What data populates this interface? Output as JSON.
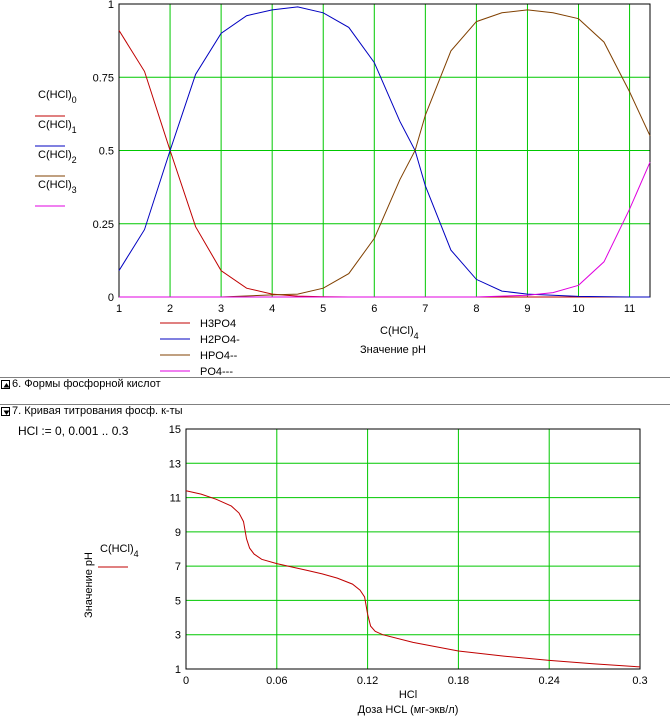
{
  "chart1": {
    "type": "line",
    "xlim": [
      1,
      11.4
    ],
    "ylim": [
      0,
      1
    ],
    "xticks": [
      "1",
      "2",
      "3",
      "4",
      "5",
      "6",
      "7",
      "8",
      "9",
      "10",
      "11"
    ],
    "yticks": [
      "0",
      "0.25",
      "0.5",
      "0.75",
      "1"
    ],
    "grid": true,
    "grid_color": "#00c800",
    "ylabel_entries": [
      {
        "label": "C(HCl)",
        "sub": "0",
        "color": "#c00000"
      },
      {
        "label": "C(HCl)",
        "sub": "1",
        "color": "#0000c0"
      },
      {
        "label": "C(HCl)",
        "sub": "2",
        "color": "#804000"
      },
      {
        "label": "C(HCl)",
        "sub": "3",
        "color": "#e000e0"
      }
    ],
    "xlabel_var": {
      "label": "C(HCl)",
      "sub": "4"
    },
    "xlabel": "Значение рН",
    "legend": [
      {
        "name": "H3PO4",
        "color": "#c00000"
      },
      {
        "name": "H2PO4-",
        "color": "#0000c0"
      },
      {
        "name": "HPO4--",
        "color": "#804000"
      },
      {
        "name": "PO4---",
        "color": "#e000e0"
      }
    ]
  },
  "chart_data": [
    {
      "type": "line",
      "xlim": [
        1,
        11.4
      ],
      "ylim": [
        0,
        1
      ],
      "xlabel": "Значение рН",
      "series": [
        {
          "name": "H3PO4",
          "color": "#c00000",
          "x": [
            1,
            1.5,
            2,
            2.5,
            3,
            3.5,
            4,
            4.5,
            5,
            5.5,
            6,
            7,
            8,
            9,
            10,
            11,
            11.4
          ],
          "y": [
            0.91,
            0.77,
            0.5,
            0.24,
            0.09,
            0.03,
            0.01,
            0.003,
            0.001,
            0,
            0,
            0,
            0,
            0,
            0,
            0,
            0
          ]
        },
        {
          "name": "H2PO4-",
          "color": "#0000c0",
          "x": [
            1,
            1.5,
            2,
            2.5,
            3,
            3.5,
            4,
            4.5,
            5,
            5.5,
            6,
            6.5,
            6.8,
            7,
            7.5,
            8,
            8.5,
            9,
            10,
            11,
            11.4
          ],
          "y": [
            0.09,
            0.23,
            0.5,
            0.76,
            0.9,
            0.96,
            0.98,
            0.99,
            0.97,
            0.92,
            0.8,
            0.6,
            0.5,
            0.38,
            0.16,
            0.06,
            0.02,
            0.01,
            0.002,
            0,
            0
          ]
        },
        {
          "name": "HPO4--",
          "color": "#804000",
          "x": [
            1,
            3,
            4,
            4.5,
            5,
            5.5,
            6,
            6.5,
            6.8,
            7,
            7.5,
            8,
            8.5,
            9,
            9.5,
            10,
            10.5,
            11,
            11.4
          ],
          "y": [
            0,
            0,
            0.007,
            0.01,
            0.03,
            0.08,
            0.2,
            0.4,
            0.5,
            0.62,
            0.84,
            0.94,
            0.97,
            0.98,
            0.97,
            0.95,
            0.87,
            0.7,
            0.55
          ]
        },
        {
          "name": "PO4---",
          "color": "#e000e0",
          "x": [
            1,
            8,
            8.5,
            9,
            9.5,
            10,
            10.5,
            11,
            11.4
          ],
          "y": [
            0,
            0,
            0.003,
            0.006,
            0.015,
            0.04,
            0.12,
            0.3,
            0.46
          ]
        }
      ]
    },
    {
      "type": "line",
      "xlim": [
        0,
        0.3
      ],
      "ylim": [
        1,
        15
      ],
      "xlabel": "Доза HCL (мг-экв/л)",
      "ylabel": "Значение рН",
      "series": [
        {
          "name": "C(HCl)4",
          "color": "#c00000",
          "x": [
            0,
            0.01,
            0.02,
            0.03,
            0.035,
            0.038,
            0.04,
            0.042,
            0.045,
            0.05,
            0.06,
            0.07,
            0.08,
            0.09,
            0.1,
            0.11,
            0.115,
            0.118,
            0.12,
            0.122,
            0.125,
            0.13,
            0.15,
            0.18,
            0.21,
            0.24,
            0.27,
            0.3
          ],
          "y": [
            11.4,
            11.2,
            10.9,
            10.5,
            10.1,
            9.6,
            8.6,
            8.05,
            7.7,
            7.4,
            7.15,
            6.95,
            6.75,
            6.55,
            6.3,
            5.95,
            5.6,
            5.2,
            4.2,
            3.5,
            3.2,
            3.0,
            2.55,
            2.05,
            1.75,
            1.5,
            1.3,
            1.12
          ]
        }
      ]
    }
  ],
  "chart2": {
    "xlim": [
      0,
      0.3
    ],
    "ylim": [
      1,
      15
    ],
    "xticks": [
      "0",
      "0.06",
      "0.12",
      "0.18",
      "0.24",
      "0.3"
    ],
    "yticks": [
      "1",
      "3",
      "5",
      "7",
      "9",
      "11",
      "13",
      "15"
    ],
    "legend_var": {
      "label": "C(HCl)",
      "sub": "4",
      "color": "#c00000"
    },
    "ylabel": "Значение рН",
    "xlabel_var": "HCl",
    "xlabel": "Доза HCL (мг-экв/л)"
  },
  "region6": {
    "title": "6. Формы фосфорной кислот"
  },
  "region7": {
    "title": "7. Кривая титрования фосф. к-ты"
  },
  "range_expr": {
    "text": "HCl := 0, 0.001 .. 0.3"
  }
}
